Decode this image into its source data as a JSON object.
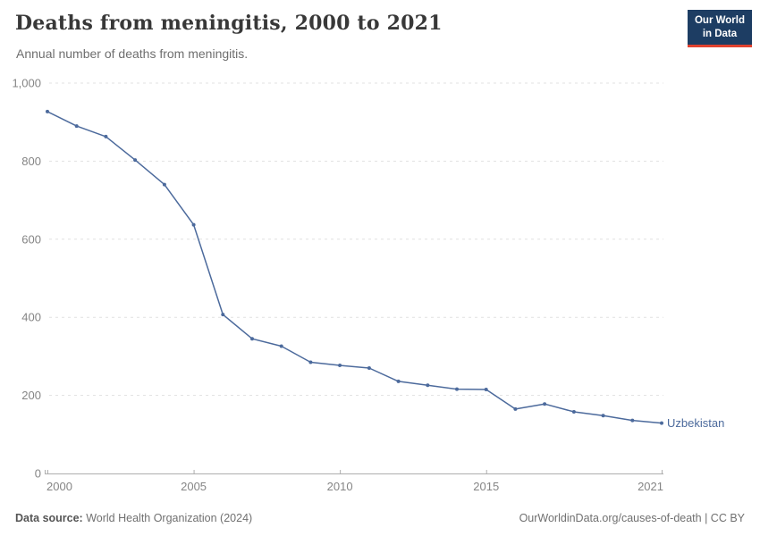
{
  "header": {
    "title": "Deaths from meningitis, 2000 to 2021",
    "subtitle": "Annual number of deaths from meningitis.",
    "logo_line1": "Our World",
    "logo_line2": "in Data"
  },
  "chart_data": {
    "type": "line",
    "title": "Deaths from meningitis, 2000 to 2021",
    "subtitle": "Annual number of deaths from meningitis.",
    "x": [
      2000,
      2001,
      2002,
      2003,
      2004,
      2005,
      2006,
      2007,
      2008,
      2009,
      2010,
      2011,
      2012,
      2013,
      2014,
      2015,
      2016,
      2017,
      2018,
      2019,
      2020,
      2021
    ],
    "series": [
      {
        "name": "Uzbekistan",
        "color": "#4C6A9C",
        "values": [
          927,
          890,
          863,
          803,
          740,
          637,
          407,
          345,
          326,
          285,
          277,
          270,
          236,
          226,
          216,
          215,
          165,
          178,
          158,
          148,
          136,
          129
        ]
      }
    ],
    "x_ticks": [
      2000,
      2005,
      2010,
      2015,
      2021
    ],
    "y_ticks": [
      0,
      200,
      400,
      600,
      800,
      1000
    ],
    "xlim": [
      2000,
      2021
    ],
    "ylim": [
      0,
      1000
    ],
    "grid": "horizontal-dashed",
    "legend_position": "end-of-line-label",
    "entity_label": "Uzbekistan"
  },
  "footer": {
    "source_label": "Data source:",
    "source_value": "World Health Organization (2024)",
    "right_text": "OurWorldinData.org/causes-of-death | CC BY"
  },
  "colors": {
    "line": "#4C6A9C",
    "logo_bg": "#1D3D63",
    "logo_red": "#E0422F",
    "grid": "#E1E1E1",
    "axis": "#ADADAD",
    "tick_label": "#858585"
  }
}
